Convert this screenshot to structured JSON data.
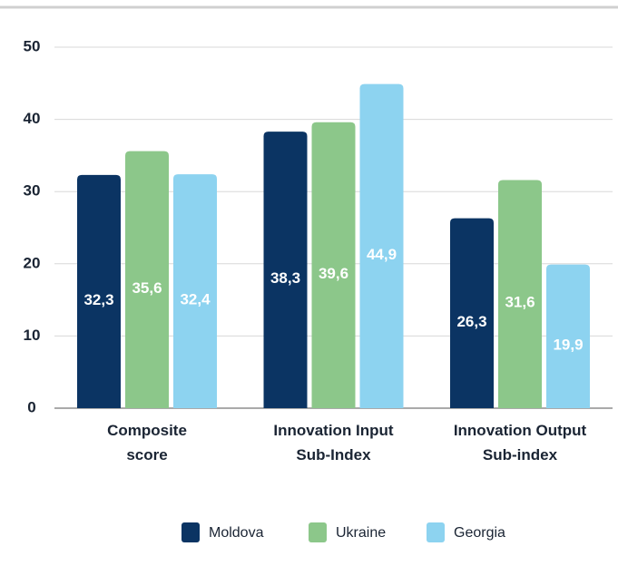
{
  "chart_data": {
    "type": "bar",
    "categories": [
      "Composite score",
      "Innovation Input Sub-Index",
      "Innovation Output Sub-index"
    ],
    "series": [
      {
        "name": "Moldova",
        "color": "#0b3463",
        "values": [
          32.3,
          38.3,
          26.3
        ],
        "value_labels": [
          "32,3",
          "38,3",
          "26,3"
        ]
      },
      {
        "name": "Ukraine",
        "color": "#8cc78a",
        "values": [
          35.6,
          39.6,
          31.6
        ],
        "value_labels": [
          "35,6",
          "39,6",
          "31,6"
        ]
      },
      {
        "name": "Georgia",
        "color": "#8dd3f0",
        "values": [
          32.4,
          44.9,
          19.9
        ],
        "value_labels": [
          "32,4",
          "44,9",
          "19,9"
        ]
      }
    ],
    "ylim": [
      0,
      50
    ],
    "yticks": [
      0,
      10,
      20,
      30,
      40,
      50
    ],
    "grid": true
  }
}
